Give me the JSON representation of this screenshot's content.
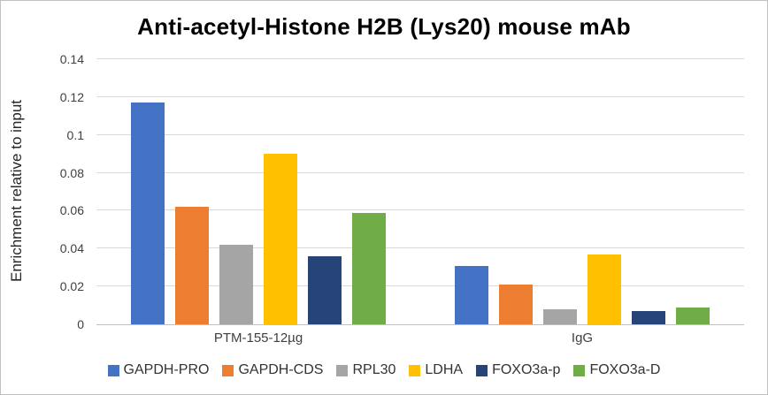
{
  "chart_data": {
    "type": "bar",
    "title": "Anti-acetyl-Histone H2B (Lys20) mouse mAb",
    "ylabel": "Enrichment relative to input",
    "xlabel": "",
    "categories": [
      "PTM-155-12µg",
      "IgG"
    ],
    "series": [
      {
        "name": "GAPDH-PRO",
        "color": "#4472C4",
        "values": [
          0.117,
          0.031
        ]
      },
      {
        "name": "GAPDH-CDS",
        "color": "#ED7D31",
        "values": [
          0.062,
          0.021
        ]
      },
      {
        "name": "RPL30",
        "color": "#A5A5A5",
        "values": [
          0.042,
          0.008
        ]
      },
      {
        "name": "LDHA",
        "color": "#FFC000",
        "values": [
          0.09,
          0.037
        ]
      },
      {
        "name": "FOXO3a-p",
        "color": "#264478",
        "values": [
          0.036,
          0.007
        ]
      },
      {
        "name": "FOXO3a-D",
        "color": "#70AD47",
        "values": [
          0.059,
          0.009
        ]
      }
    ],
    "ylim": [
      0,
      0.14
    ],
    "yticks": [
      "0",
      "0.02",
      "0.04",
      "0.06",
      "0.08",
      "0.1",
      "0.12",
      "0.14"
    ],
    "grid": true,
    "legend_position": "bottom",
    "grid_color": "#d9d9d9",
    "axis_color": "#bfbfbf"
  }
}
